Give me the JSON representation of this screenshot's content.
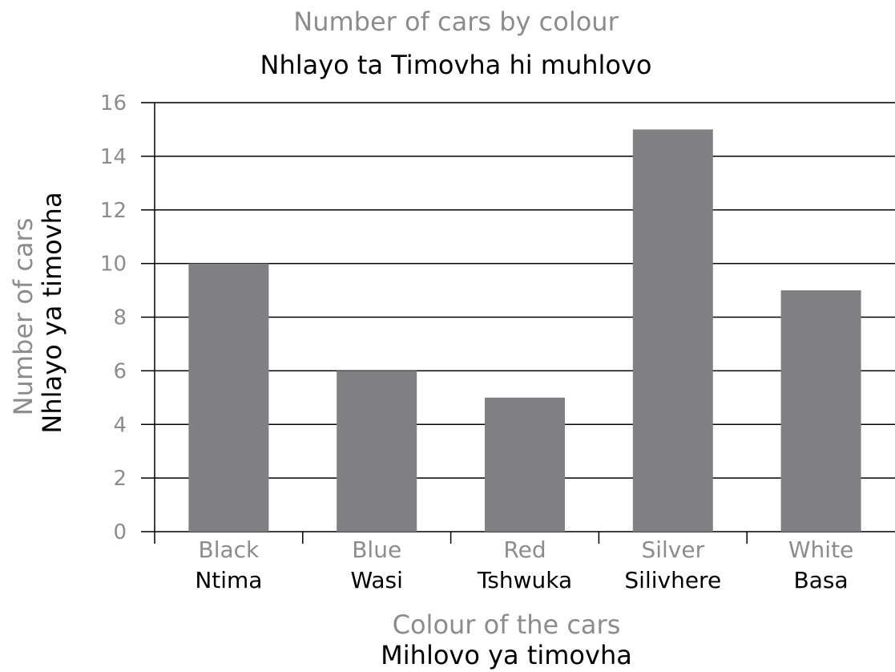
{
  "chart_data": {
    "type": "bar",
    "title": "Number of cars by colour",
    "subtitle": "Nhlayo ta Timovha hi muhlovo",
    "xlabel": "Colour of the cars",
    "xlabel_secondary": "Mihlovo ya timovha",
    "ylabel": "Number of cars",
    "ylabel_secondary": "Nhlayo ya timovha",
    "categories": [
      "Black",
      "Blue",
      "Red",
      "Silver",
      "White"
    ],
    "categories_secondary": [
      "Ntima",
      "Wasi",
      "Tshwuka",
      "Silivhere",
      "Basa"
    ],
    "values": [
      10,
      6,
      5,
      15,
      9
    ],
    "ylim": [
      0,
      16
    ],
    "yticks": [
      0,
      2,
      4,
      6,
      8,
      10,
      12,
      14,
      16
    ],
    "ytick_labels": [
      "0",
      "2",
      "4",
      "6",
      "8",
      "10",
      "12",
      "14",
      "16"
    ],
    "grid": true,
    "bar_color": "#808083",
    "gridline_color": "#000000",
    "secondary_text_color": "#000000",
    "primary_text_color": "#8c8c8c"
  }
}
